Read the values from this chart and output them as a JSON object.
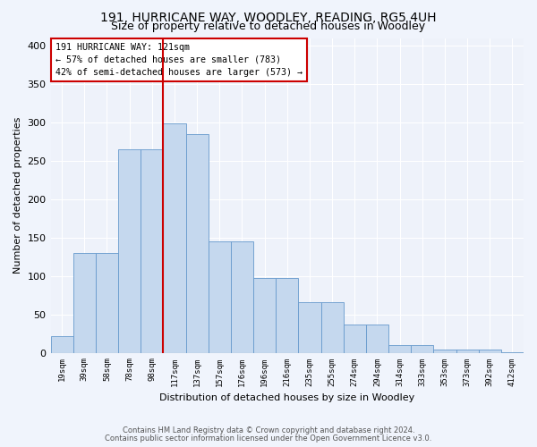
{
  "title": "191, HURRICANE WAY, WOODLEY, READING, RG5 4UH",
  "subtitle": "Size of property relative to detached houses in Woodley",
  "xlabel": "Distribution of detached houses by size in Woodley",
  "ylabel": "Number of detached properties",
  "bar_labels": [
    "19sqm",
    "39sqm",
    "58sqm",
    "78sqm",
    "98sqm",
    "117sqm",
    "137sqm",
    "157sqm",
    "176sqm",
    "196sqm",
    "216sqm",
    "235sqm",
    "255sqm",
    "274sqm",
    "294sqm",
    "314sqm",
    "333sqm",
    "353sqm",
    "373sqm",
    "392sqm",
    "412sqm"
  ],
  "bar_heights": [
    22,
    130,
    130,
    265,
    265,
    299,
    285,
    145,
    145,
    97,
    97,
    66,
    66,
    37,
    37,
    10,
    10,
    4,
    4,
    4,
    1
  ],
  "bar_color": "#c5d8ee",
  "bar_edge_color": "#6699cc",
  "vline_x_bin": 5,
  "vline_color": "#cc0000",
  "annotation_line1": "191 HURRICANE WAY: 121sqm",
  "annotation_line2": "← 57% of detached houses are smaller (783)",
  "annotation_line3": "42% of semi-detached houses are larger (573) →",
  "annotation_box_color": "#cc0000",
  "footer1": "Contains HM Land Registry data © Crown copyright and database right 2024.",
  "footer2": "Contains public sector information licensed under the Open Government Licence v3.0.",
  "ylim": [
    0,
    410
  ],
  "bg_color": "#f0f4fc",
  "plot_bg_color": "#eef2fa",
  "title_fontsize": 10,
  "subtitle_fontsize": 9,
  "ytick_values": [
    0,
    50,
    100,
    150,
    200,
    250,
    300,
    350,
    400
  ],
  "n_bars": 21
}
